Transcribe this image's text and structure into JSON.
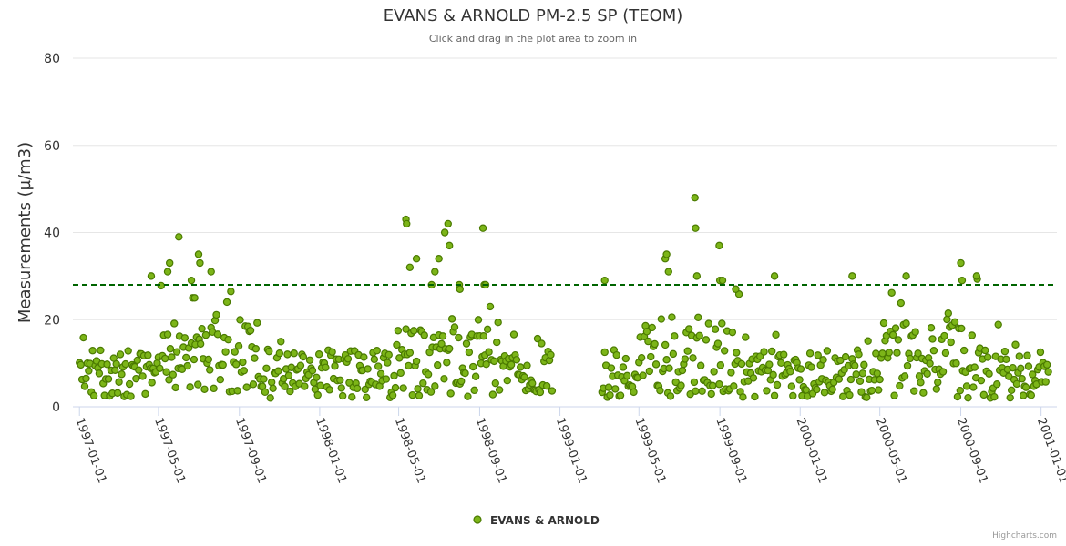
{
  "chart": {
    "title": "EVANS & ARNOLD PM-2.5 SP (TEOM)",
    "subtitle": "Click and drag in the plot area to zoom in",
    "credits": "Highcharts.com"
  },
  "chart_data": {
    "type": "scatter",
    "title": "EVANS & ARNOLD PM-2.5 SP (TEOM)",
    "subtitle": "Click and drag in the plot area to zoom in",
    "xlabel": "",
    "ylabel": "Measurements (µ/m3)",
    "ylim": [
      0,
      80
    ],
    "yticks": [
      0,
      20,
      40,
      60,
      80
    ],
    "xlim": [
      "1996-12-22",
      "2001-01-25"
    ],
    "xticks": [
      "1997-01-01",
      "1997-05-01",
      "1997-09-01",
      "1998-01-01",
      "1998-05-01",
      "1998-09-01",
      "1999-01-01",
      "1999-05-01",
      "1999-09-01",
      "2000-01-01",
      "2000-05-01",
      "2000-09-01",
      "2001-01-01"
    ],
    "threshold": {
      "value": 28,
      "style": "dashed",
      "color": "#006400"
    },
    "grid": true,
    "legend": {
      "position": "bottom-center"
    },
    "series": [
      {
        "name": "EVANS & ARNOLD",
        "color": "#7cb518",
        "outline": "#4a7a00",
        "highlighted_points": [
          {
            "x": "1997-04-20",
            "y": 30
          },
          {
            "x": "1997-05-15",
            "y": 31
          },
          {
            "x": "1997-05-18",
            "y": 33
          },
          {
            "x": "1997-06-01",
            "y": 39
          },
          {
            "x": "1997-06-20",
            "y": 29
          },
          {
            "x": "1997-07-01",
            "y": 35
          },
          {
            "x": "1997-07-03",
            "y": 33
          },
          {
            "x": "1997-07-20",
            "y": 31
          },
          {
            "x": "1997-06-25",
            "y": 25
          },
          {
            "x": "1998-05-12",
            "y": 43
          },
          {
            "x": "1998-05-13",
            "y": 42
          },
          {
            "x": "1998-05-18",
            "y": 32
          },
          {
            "x": "1998-05-28",
            "y": 34
          },
          {
            "x": "1998-06-20",
            "y": 28
          },
          {
            "x": "1998-06-25",
            "y": 31
          },
          {
            "x": "1998-07-01",
            "y": 34
          },
          {
            "x": "1998-07-10",
            "y": 40
          },
          {
            "x": "1998-07-15",
            "y": 42
          },
          {
            "x": "1998-07-17",
            "y": 37
          },
          {
            "x": "1998-08-01",
            "y": 28
          },
          {
            "x": "1998-08-02",
            "y": 27
          },
          {
            "x": "1998-09-06",
            "y": 41
          },
          {
            "x": "1998-09-08",
            "y": 28
          },
          {
            "x": "1998-09-10",
            "y": 28
          },
          {
            "x": "1999-03-10",
            "y": 29
          },
          {
            "x": "1999-06-10",
            "y": 34
          },
          {
            "x": "1999-06-12",
            "y": 35
          },
          {
            "x": "1999-06-15",
            "y": 31
          },
          {
            "x": "1999-07-25",
            "y": 48
          },
          {
            "x": "1999-07-26",
            "y": 41
          },
          {
            "x": "1999-07-28",
            "y": 30
          },
          {
            "x": "1999-08-31",
            "y": 37
          },
          {
            "x": "1999-09-01",
            "y": 29
          },
          {
            "x": "1999-09-05",
            "y": 29
          },
          {
            "x": "1999-09-25",
            "y": 27
          },
          {
            "x": "1999-11-23",
            "y": 30
          },
          {
            "x": "2000-03-20",
            "y": 30
          },
          {
            "x": "2000-06-10",
            "y": 30
          },
          {
            "x": "2000-09-01",
            "y": 33
          },
          {
            "x": "2000-09-03",
            "y": 29
          },
          {
            "x": "2000-09-25",
            "y": 30
          }
        ]
      }
    ],
    "legend_entries": [
      "EVANS & ARNOLD"
    ]
  }
}
